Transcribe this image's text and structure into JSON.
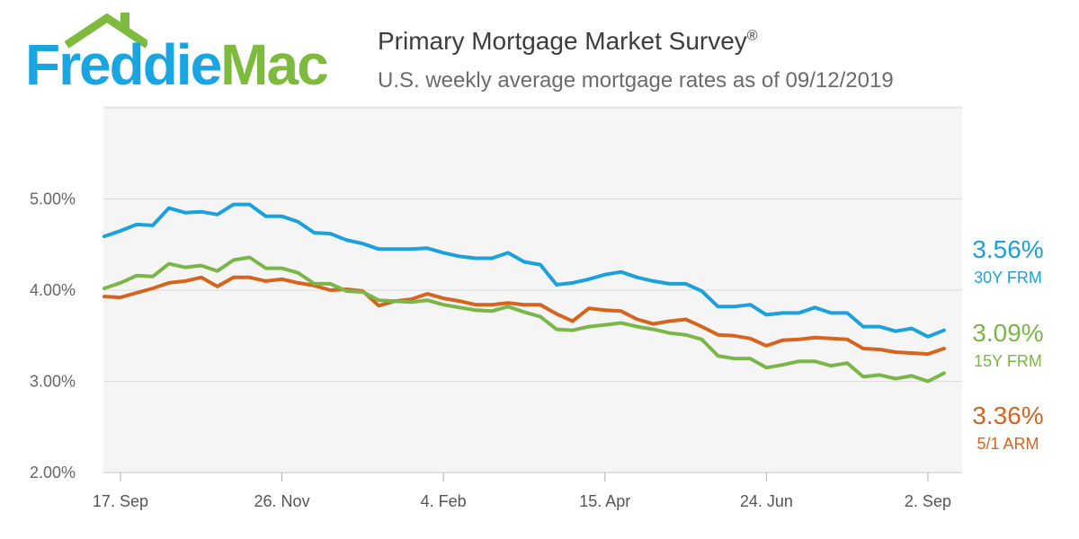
{
  "header": {
    "logo_part1": "Freddie",
    "logo_part2": "Mac",
    "title": "Primary Mortgage Market Survey",
    "title_mark": "®",
    "subtitle": "U.S. weekly average mortgage rates as of 09/12/2019"
  },
  "colors": {
    "frm30": "#1ba1dc",
    "frm15": "#7ab648",
    "arm51": "#d4641e",
    "brand_blue": "#1ba5e0",
    "brand_green": "#7dba3e"
  },
  "chart_data": {
    "type": "line",
    "title": "Primary Mortgage Market Survey",
    "subtitle": "U.S. weekly average mortgage rates as of 09/12/2019",
    "xlabel": "",
    "ylabel": "",
    "x_ticks": [
      "17. Sep",
      "26. Nov",
      "4. Feb",
      "15. Apr",
      "24. Jun",
      "2. Sep"
    ],
    "x_tick_week_index": [
      1,
      11,
      21,
      31,
      41,
      51
    ],
    "y_ticks": [
      "2.00%",
      "3.00%",
      "4.00%",
      "5.00%"
    ],
    "y_tick_values": [
      2.0,
      3.0,
      4.0,
      5.0
    ],
    "ylim": [
      2.0,
      6.0
    ],
    "grid": true,
    "legend": "end-of-line labels at right",
    "series": [
      {
        "name": "30Y FRM",
        "end_label": "3.56%",
        "values": [
          4.59,
          4.65,
          4.72,
          4.71,
          4.9,
          4.85,
          4.86,
          4.83,
          4.94,
          4.94,
          4.81,
          4.81,
          4.75,
          4.63,
          4.62,
          4.55,
          4.51,
          4.45,
          4.45,
          4.45,
          4.46,
          4.41,
          4.37,
          4.35,
          4.35,
          4.41,
          4.31,
          4.28,
          4.06,
          4.08,
          4.12,
          4.17,
          4.2,
          4.14,
          4.1,
          4.07,
          4.07,
          3.99,
          3.82,
          3.82,
          3.84,
          3.73,
          3.75,
          3.75,
          3.81,
          3.75,
          3.75,
          3.6,
          3.6,
          3.55,
          3.58,
          3.49,
          3.56
        ]
      },
      {
        "name": "15Y FRM",
        "end_label": "3.09%",
        "values": [
          4.02,
          4.08,
          4.16,
          4.15,
          4.29,
          4.25,
          4.27,
          4.21,
          4.33,
          4.36,
          4.24,
          4.24,
          4.19,
          4.07,
          4.07,
          3.99,
          3.98,
          3.89,
          3.88,
          3.87,
          3.89,
          3.84,
          3.81,
          3.78,
          3.77,
          3.82,
          3.76,
          3.71,
          3.57,
          3.56,
          3.6,
          3.62,
          3.64,
          3.6,
          3.57,
          3.53,
          3.51,
          3.46,
          3.28,
          3.25,
          3.25,
          3.15,
          3.18,
          3.22,
          3.22,
          3.17,
          3.2,
          3.05,
          3.07,
          3.03,
          3.06,
          3.0,
          3.09
        ]
      },
      {
        "name": "5/1 ARM",
        "end_label": "3.36%",
        "values": [
          3.93,
          3.92,
          3.97,
          4.02,
          4.08,
          4.1,
          4.14,
          4.04,
          4.14,
          4.14,
          4.1,
          4.12,
          4.08,
          4.05,
          4.0,
          4.01,
          3.99,
          3.83,
          3.88,
          3.9,
          3.96,
          3.91,
          3.88,
          3.84,
          3.84,
          3.86,
          3.84,
          3.84,
          3.74,
          3.66,
          3.8,
          3.78,
          3.77,
          3.68,
          3.63,
          3.66,
          3.68,
          3.6,
          3.51,
          3.5,
          3.47,
          3.39,
          3.45,
          3.46,
          3.48,
          3.47,
          3.46,
          3.36,
          3.35,
          3.32,
          3.31,
          3.3,
          3.36
        ]
      }
    ]
  }
}
